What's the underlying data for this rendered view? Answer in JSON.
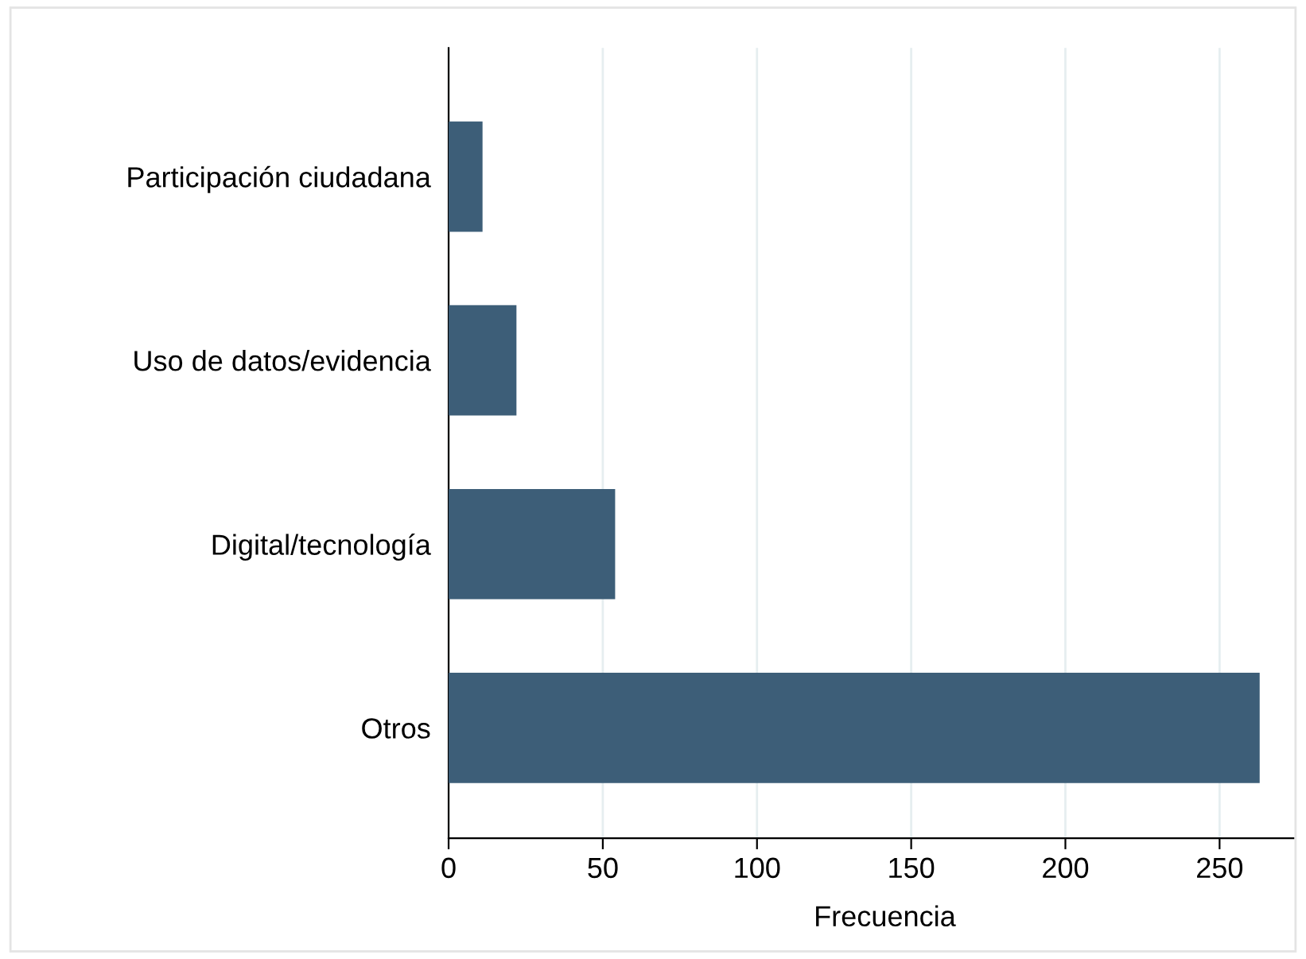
{
  "chart_data": {
    "type": "bar",
    "orientation": "horizontal",
    "xlabel": "Frecuencia",
    "categories": [
      "Participación ciudadana",
      "Uso de datos/evidencia",
      "Digital/tecnología",
      "Otros"
    ],
    "values": [
      11,
      22,
      54,
      263
    ],
    "color": "#3d5e78",
    "xlim": [
      0,
      274
    ],
    "xticks": [
      0,
      50,
      100,
      150,
      200,
      250
    ],
    "grid": "x",
    "legend": false
  }
}
